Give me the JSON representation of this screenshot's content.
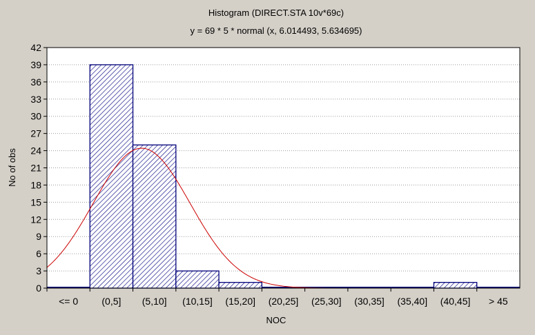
{
  "chart_data": {
    "type": "bar",
    "title": "Histogram (DIRECT.STA 10v*69c)",
    "subtitle": "y = 69 * 5 * normal (x, 6.014493, 5.634695)",
    "xlabel": "NOC",
    "ylabel": "No of obs",
    "categories": [
      "<= 0",
      "(0,5]",
      "(5,10]",
      "(10,15]",
      "(15,20]",
      "(20,25]",
      "(25,30]",
      "(30,35]",
      "(35,40]",
      "(40,45]",
      "> 45"
    ],
    "values": [
      0,
      39,
      25,
      3,
      1,
      0,
      0,
      0,
      0,
      1,
      0
    ],
    "ylim": [
      0,
      42
    ],
    "yticks": [
      0,
      3,
      6,
      9,
      12,
      15,
      18,
      21,
      24,
      27,
      30,
      33,
      36,
      39,
      42
    ],
    "grid": true,
    "fit_curve": {
      "type": "normal",
      "n": 69,
      "bin_width": 5,
      "mean": 6.014493,
      "sd": 5.634695
    },
    "colors": {
      "bar_fill": "#ffffff",
      "bar_hatch": "#1a1a8c",
      "bar_edge": "#00007a",
      "curve": "#cc0000",
      "plot_bg": "#ffffff",
      "window_bg": "#d4d0c8"
    }
  }
}
